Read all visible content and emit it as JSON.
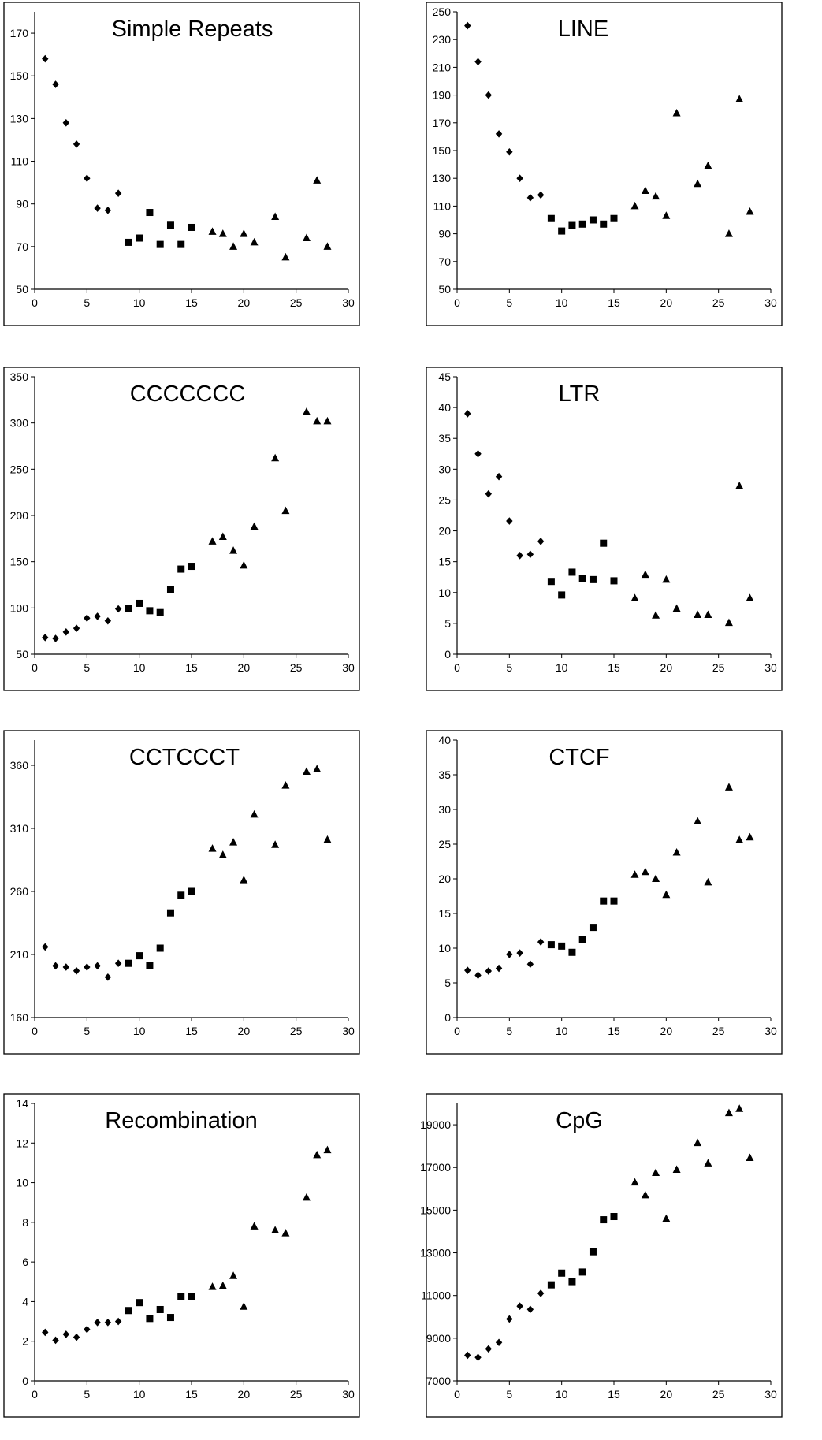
{
  "figure": {
    "colors": {
      "marker": "#000000",
      "frame": "#000000",
      "background": "#ffffff"
    }
  },
  "chart_data": [
    {
      "type": "scatter",
      "title": "Simple Repeats",
      "xlim": [
        0,
        30
      ],
      "ylim": [
        50,
        180
      ],
      "xticks": [
        0,
        5,
        10,
        15,
        20,
        25,
        30
      ],
      "yticks": [
        50,
        70,
        90,
        110,
        130,
        150,
        170
      ],
      "series": [
        {
          "marker": "diamond",
          "x": [
            1,
            2,
            3,
            4,
            5,
            6,
            7,
            8
          ],
          "y": [
            158,
            146,
            128,
            118,
            102,
            88,
            87,
            95
          ]
        },
        {
          "marker": "square",
          "x": [
            9,
            10,
            11,
            12,
            13,
            14,
            15
          ],
          "y": [
            72,
            74,
            86,
            71,
            80,
            71,
            79
          ]
        },
        {
          "marker": "triangle",
          "x": [
            17,
            18,
            19,
            20,
            21,
            23,
            24,
            26,
            27,
            28
          ],
          "y": [
            77,
            76,
            70,
            76,
            72,
            84,
            65,
            74,
            101,
            70
          ]
        }
      ]
    },
    {
      "type": "scatter",
      "title": "LINE",
      "xlim": [
        0,
        30
      ],
      "ylim": [
        50,
        250
      ],
      "xticks": [
        0,
        5,
        10,
        15,
        20,
        25,
        30
      ],
      "yticks": [
        50,
        70,
        90,
        110,
        130,
        150,
        170,
        190,
        210,
        230,
        250
      ],
      "series": [
        {
          "marker": "diamond",
          "x": [
            1,
            2,
            3,
            4,
            5,
            6,
            7,
            8
          ],
          "y": [
            240,
            214,
            190,
            162,
            149,
            130,
            116,
            118
          ]
        },
        {
          "marker": "square",
          "x": [
            9,
            10,
            11,
            12,
            13,
            14,
            15
          ],
          "y": [
            101,
            92,
            96,
            97,
            100,
            97,
            101
          ]
        },
        {
          "marker": "triangle",
          "x": [
            17,
            18,
            19,
            20,
            21,
            23,
            24,
            26,
            27,
            28
          ],
          "y": [
            110,
            121,
            117,
            103,
            177,
            126,
            139,
            90,
            187,
            106
          ]
        }
      ]
    },
    {
      "type": "scatter",
      "title": "CCCCCCC",
      "xlim": [
        0,
        30
      ],
      "ylim": [
        50,
        350
      ],
      "xticks": [
        0,
        5,
        10,
        15,
        20,
        25,
        30
      ],
      "yticks": [
        50,
        100,
        150,
        200,
        250,
        300,
        350
      ],
      "series": [
        {
          "marker": "diamond",
          "x": [
            1,
            2,
            3,
            4,
            5,
            6,
            7,
            8
          ],
          "y": [
            68,
            67,
            74,
            78,
            89,
            91,
            86,
            99
          ]
        },
        {
          "marker": "square",
          "x": [
            9,
            10,
            11,
            12,
            13,
            14,
            15
          ],
          "y": [
            99,
            105,
            97,
            95,
            120,
            142,
            145
          ]
        },
        {
          "marker": "triangle",
          "x": [
            17,
            18,
            19,
            20,
            21,
            23,
            24,
            26,
            27,
            28
          ],
          "y": [
            172,
            177,
            162,
            146,
            188,
            262,
            205,
            312,
            302,
            302
          ]
        }
      ]
    },
    {
      "type": "scatter",
      "title": "LTR",
      "xlim": [
        0,
        30
      ],
      "ylim": [
        0,
        45
      ],
      "xticks": [
        0,
        5,
        10,
        15,
        20,
        25,
        30
      ],
      "yticks": [
        0,
        5,
        10,
        15,
        20,
        25,
        30,
        35,
        40,
        45
      ],
      "series": [
        {
          "marker": "diamond",
          "x": [
            1,
            2,
            3,
            4,
            5,
            6,
            7,
            8
          ],
          "y": [
            39,
            32.5,
            26,
            28.8,
            21.6,
            16,
            16.2,
            18.3
          ]
        },
        {
          "marker": "square",
          "x": [
            9,
            10,
            11,
            12,
            13,
            14,
            15
          ],
          "y": [
            11.8,
            9.6,
            13.3,
            12.3,
            12.1,
            18,
            11.9
          ]
        },
        {
          "marker": "triangle",
          "x": [
            17,
            18,
            19,
            20,
            21,
            23,
            24,
            26,
            27,
            28
          ],
          "y": [
            9.1,
            12.9,
            6.3,
            12.1,
            7.4,
            6.4,
            6.4,
            5.1,
            27.3,
            9.1
          ]
        }
      ]
    },
    {
      "type": "scatter",
      "title": "CCTCCCT",
      "xlim": [
        0,
        30
      ],
      "ylim": [
        160,
        380
      ],
      "xticks": [
        0,
        5,
        10,
        15,
        20,
        25,
        30
      ],
      "yticks": [
        160,
        210,
        260,
        310,
        360
      ],
      "series": [
        {
          "marker": "diamond",
          "x": [
            1,
            2,
            3,
            4,
            5,
            6,
            7,
            8
          ],
          "y": [
            216,
            201,
            200,
            197,
            200,
            201,
            192,
            203
          ]
        },
        {
          "marker": "square",
          "x": [
            9,
            10,
            11,
            12,
            13,
            14,
            15
          ],
          "y": [
            203,
            209,
            201,
            215,
            243,
            257,
            260
          ]
        },
        {
          "marker": "triangle",
          "x": [
            17,
            18,
            19,
            20,
            21,
            23,
            24,
            26,
            27,
            28
          ],
          "y": [
            294,
            289,
            299,
            269,
            321,
            297,
            344,
            355,
            357,
            301
          ]
        }
      ]
    },
    {
      "type": "scatter",
      "title": "CTCF",
      "xlim": [
        0,
        30
      ],
      "ylim": [
        0,
        40
      ],
      "xticks": [
        0,
        5,
        10,
        15,
        20,
        25,
        30
      ],
      "yticks": [
        0,
        5,
        10,
        15,
        20,
        25,
        30,
        35,
        40
      ],
      "series": [
        {
          "marker": "diamond",
          "x": [
            1,
            2,
            3,
            4,
            5,
            6,
            7,
            8
          ],
          "y": [
            6.8,
            6.1,
            6.7,
            7.1,
            9.1,
            9.3,
            7.7,
            10.9
          ]
        },
        {
          "marker": "square",
          "x": [
            9,
            10,
            11,
            12,
            13,
            14,
            15
          ],
          "y": [
            10.5,
            10.3,
            9.4,
            11.3,
            13,
            16.8,
            16.8
          ]
        },
        {
          "marker": "triangle",
          "x": [
            17,
            18,
            19,
            20,
            21,
            23,
            24,
            26,
            27,
            28
          ],
          "y": [
            20.6,
            21,
            20,
            17.7,
            23.8,
            28.3,
            19.5,
            33.2,
            25.6,
            26
          ]
        }
      ]
    },
    {
      "type": "scatter",
      "title": "Recombination",
      "xlim": [
        0,
        30
      ],
      "ylim": [
        0,
        14
      ],
      "xticks": [
        0,
        5,
        10,
        15,
        20,
        25,
        30
      ],
      "yticks": [
        0,
        2,
        4,
        6,
        8,
        10,
        12,
        14
      ],
      "series": [
        {
          "marker": "diamond",
          "x": [
            1,
            2,
            3,
            4,
            5,
            6,
            7,
            8
          ],
          "y": [
            2.45,
            2.05,
            2.35,
            2.2,
            2.6,
            2.95,
            2.95,
            3
          ]
        },
        {
          "marker": "square",
          "x": [
            9,
            10,
            11,
            12,
            13,
            14,
            15
          ],
          "y": [
            3.55,
            3.95,
            3.15,
            3.6,
            3.2,
            4.25,
            4.25
          ]
        },
        {
          "marker": "triangle",
          "x": [
            17,
            18,
            19,
            20,
            21,
            23,
            24,
            26,
            27,
            28
          ],
          "y": [
            4.75,
            4.8,
            5.3,
            3.75,
            7.8,
            7.6,
            7.45,
            9.25,
            11.4,
            11.65
          ]
        }
      ]
    },
    {
      "type": "scatter",
      "title": "CpG",
      "xlim": [
        0,
        30
      ],
      "ylim": [
        7000,
        20000
      ],
      "xticks": [
        0,
        5,
        10,
        15,
        20,
        25,
        30
      ],
      "yticks": [
        7000,
        9000,
        11000,
        13000,
        15000,
        17000,
        19000
      ],
      "series": [
        {
          "marker": "diamond",
          "x": [
            1,
            2,
            3,
            4,
            5,
            6,
            7,
            8
          ],
          "y": [
            8200,
            8100,
            8500,
            8800,
            9900,
            10500,
            10350,
            11100
          ]
        },
        {
          "marker": "square",
          "x": [
            9,
            10,
            11,
            12,
            13,
            14,
            15
          ],
          "y": [
            11500,
            12050,
            11650,
            12100,
            13050,
            14550,
            14700
          ]
        },
        {
          "marker": "triangle",
          "x": [
            17,
            18,
            19,
            20,
            21,
            23,
            24,
            26,
            27,
            28
          ],
          "y": [
            16300,
            15700,
            16750,
            14600,
            16900,
            18150,
            17200,
            19550,
            19750,
            17450
          ]
        }
      ]
    }
  ]
}
